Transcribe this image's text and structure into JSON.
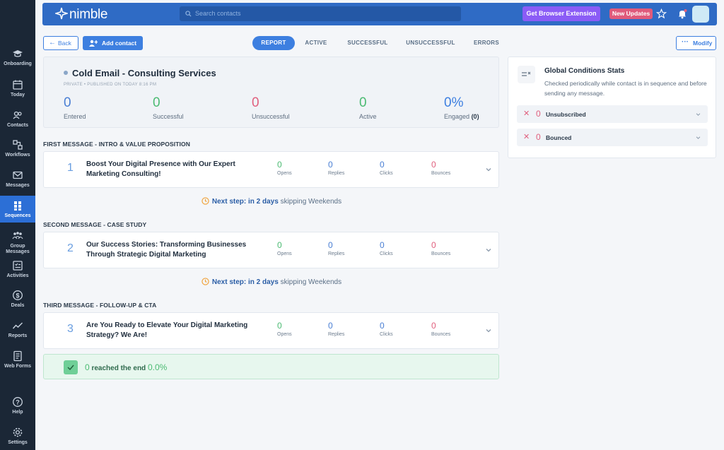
{
  "sidebar": {
    "items": [
      {
        "label": "Onboarding",
        "icon": "graduation-cap-icon"
      },
      {
        "label": "Today",
        "icon": "calendar-icon"
      },
      {
        "label": "Contacts",
        "icon": "contacts-icon"
      },
      {
        "label": "Workflows",
        "icon": "workflows-icon"
      },
      {
        "label": "Messages",
        "icon": "envelope-icon"
      },
      {
        "label": "Sequences",
        "icon": "sequences-icon"
      },
      {
        "label": "Group",
        "label2": "Messages",
        "icon": "group-messages-icon"
      },
      {
        "label": "Activities",
        "icon": "checklist-icon"
      },
      {
        "label": "Deals",
        "icon": "dollar-icon"
      },
      {
        "label": "Reports",
        "icon": "chart-line-icon"
      },
      {
        "label": "Web Forms",
        "icon": "form-icon"
      },
      {
        "label": "Help",
        "icon": "question-icon"
      },
      {
        "label": "Settings",
        "icon": "gear-icon"
      }
    ],
    "active": "Sequences"
  },
  "topbar": {
    "logo": "nimble",
    "search_placeholder": "Search contacts",
    "extension_label": "Get Browser Extension",
    "updates_label": "New Updates"
  },
  "actions": {
    "back_label": "Back",
    "add_contact_label": "Add contact",
    "modify_label": "Modify"
  },
  "tabs": [
    "REPORT",
    "ACTIVE",
    "SUCCESSFUL",
    "UNSUCCESSFUL",
    "ERRORS"
  ],
  "sequence": {
    "title": "Cold Email - Consulting Services",
    "meta": "PRIVATE  •  PUBLISHED ON TODAY 8:16 PM",
    "stats": {
      "entered": {
        "value": "0",
        "label": "Entered"
      },
      "successful": {
        "value": "0",
        "label": "Successful"
      },
      "unsuccessful": {
        "value": "0",
        "label": "Unsuccessful"
      },
      "active": {
        "value": "0",
        "label": "Active"
      },
      "engaged": {
        "value": "0%",
        "label": "Engaged",
        "count": "(0)"
      }
    }
  },
  "messages": [
    {
      "section": "FIRST MESSAGE - INTRO & VALUE PROPOSITION",
      "number": "1",
      "subject": "Boost Your Digital Presence with Our Expert Marketing Consulting!",
      "opens": "0",
      "replies": "0",
      "clicks": "0",
      "bounces": "0"
    },
    {
      "section": "SECOND MESSAGE - CASE STUDY",
      "number": "2",
      "subject": "Our Success Stories: Transforming Businesses Through Strategic Digital Marketing",
      "opens": "0",
      "replies": "0",
      "clicks": "0",
      "bounces": "0"
    },
    {
      "section": "THIRD MESSAGE - FOLLOW-UP & CTA",
      "number": "3",
      "subject": "Are You Ready to Elevate Your Digital Marketing Strategy? We Are!",
      "opens": "0",
      "replies": "0",
      "clicks": "0",
      "bounces": "0"
    }
  ],
  "stat_labels": {
    "opens": "Opens",
    "replies": "Replies",
    "clicks": "Clicks",
    "bounces": "Bounces"
  },
  "next_step": {
    "prefix": "Next step: in 2 days",
    "suffix": " skipping Weekends"
  },
  "end": {
    "count": "0",
    "text": " reached the end ",
    "percent": "0.0%"
  },
  "global_conditions": {
    "title": "Global Conditions Stats",
    "description": "Checked periodically while contact is in sequence and before sending any message.",
    "rows": [
      {
        "count": "0",
        "label": "Unsubscribed"
      },
      {
        "count": "0",
        "label": "Bounced"
      }
    ]
  },
  "colors": {
    "accent": "#3d7fe0",
    "sidebar": "#1b2736",
    "success": "#4cbb73",
    "danger": "#e0607e"
  }
}
